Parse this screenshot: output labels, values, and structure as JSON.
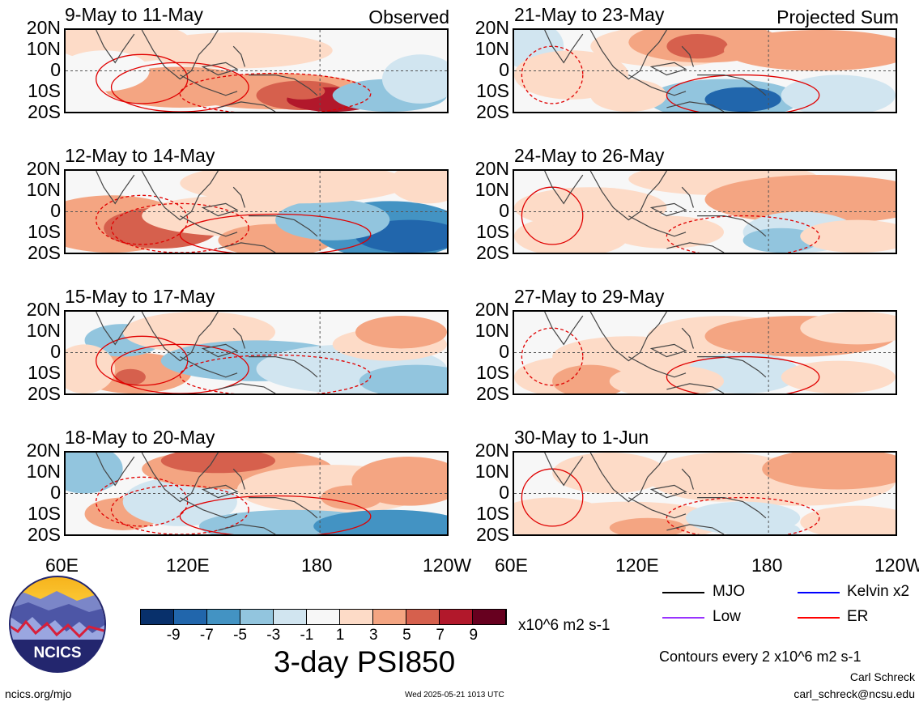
{
  "panels": [
    {
      "title": "9-May to 11-May",
      "tag": "Observed"
    },
    {
      "title": "12-May to 14-May",
      "tag": ""
    },
    {
      "title": "15-May to 17-May",
      "tag": ""
    },
    {
      "title": "18-May to 20-May",
      "tag": ""
    },
    {
      "title": "21-May to 23-May",
      "tag": "Projected Sum"
    },
    {
      "title": "24-May to 26-May",
      "tag": ""
    },
    {
      "title": "27-May to 29-May",
      "tag": ""
    },
    {
      "title": "30-May to 1-Jun",
      "tag": ""
    }
  ],
  "lat_labels": [
    "20N",
    "10N",
    "0",
    "10S",
    "20S"
  ],
  "lon_labels": [
    "60E",
    "120E",
    "180",
    "120W"
  ],
  "colorbar": {
    "labels": [
      "-9",
      "-7",
      "-5",
      "-3",
      "-1",
      "1",
      "3",
      "5",
      "7",
      "9"
    ],
    "units": "x10^6 m2 s-1",
    "colors": [
      "#08306b",
      "#2166ac",
      "#4393c3",
      "#92c5de",
      "#d1e5f0",
      "#f7f7f7",
      "#fddbc7",
      "#f4a582",
      "#d6604d",
      "#b2182b",
      "#67001f"
    ]
  },
  "plot_title": "3-day PSI850",
  "legend": [
    {
      "label": "MJO",
      "color": "#000000"
    },
    {
      "label": "Kelvin x2",
      "color": "#0000ff"
    },
    {
      "label": "Low",
      "color": "#9933ff"
    },
    {
      "label": "ER",
      "color": "#ff0000"
    }
  ],
  "contour_note": "Contours every 2 x10^6 m2 s-1",
  "author": "Carl Schreck",
  "email": "carl_schreck@ncsu.edu",
  "site": "ncics.org/mjo",
  "timestamp": "Wed 2025-05-21 1013 UTC",
  "logo_text": "NCICS"
}
